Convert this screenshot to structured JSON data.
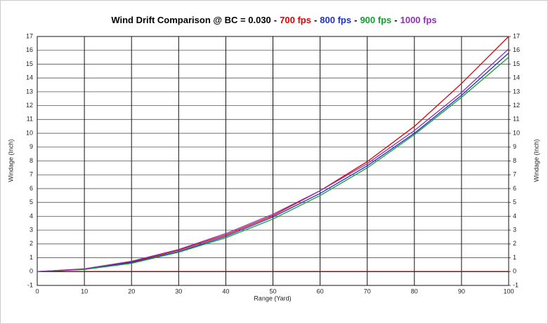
{
  "chart_data": {
    "type": "line",
    "title": "Wind Drift Comparison @ BC = 0.030",
    "title_separator": "-",
    "xlabel": "Range (Yard)",
    "ylabel": "Windage (Inch)",
    "y2label": "Windage (Inch)",
    "x": [
      0,
      10,
      20,
      30,
      40,
      50,
      60,
      70,
      80,
      90,
      100
    ],
    "series": [
      {
        "name": "700 fps",
        "color": "#e00000",
        "values": [
          0,
          0.18,
          0.7,
          1.55,
          2.65,
          4.05,
          5.85,
          7.95,
          10.5,
          13.6,
          17.0
        ]
      },
      {
        "name": "800 fps",
        "color": "#2030c0",
        "values": [
          0,
          0.17,
          0.65,
          1.45,
          2.55,
          3.95,
          5.65,
          7.65,
          10.0,
          12.75,
          15.8
        ]
      },
      {
        "name": "900 fps",
        "color": "#10a030",
        "values": [
          0,
          0.15,
          0.6,
          1.4,
          2.45,
          3.8,
          5.5,
          7.5,
          9.9,
          12.6,
          15.5
        ]
      },
      {
        "name": "1000 fps",
        "color": "#9030b0",
        "values": [
          0,
          0.2,
          0.75,
          1.6,
          2.75,
          4.15,
          5.85,
          7.8,
          10.2,
          12.95,
          16.1
        ]
      }
    ],
    "xlim": [
      0,
      100
    ],
    "xticks": [
      0,
      10,
      20,
      30,
      40,
      50,
      60,
      70,
      80,
      90,
      100
    ],
    "ylim": [
      -1,
      17
    ],
    "yticks": [
      -1,
      0,
      1,
      2,
      3,
      4,
      5,
      6,
      7,
      8,
      9,
      10,
      11,
      12,
      13,
      14,
      15,
      16,
      17
    ],
    "y2lim": [
      -1,
      17
    ],
    "y2ticks": [
      -1,
      0,
      1,
      2,
      3,
      4,
      5,
      6,
      7,
      8,
      9,
      10,
      11,
      12,
      13,
      14,
      15,
      16,
      17
    ],
    "grid": true,
    "zero_line_color": "#b00000"
  }
}
